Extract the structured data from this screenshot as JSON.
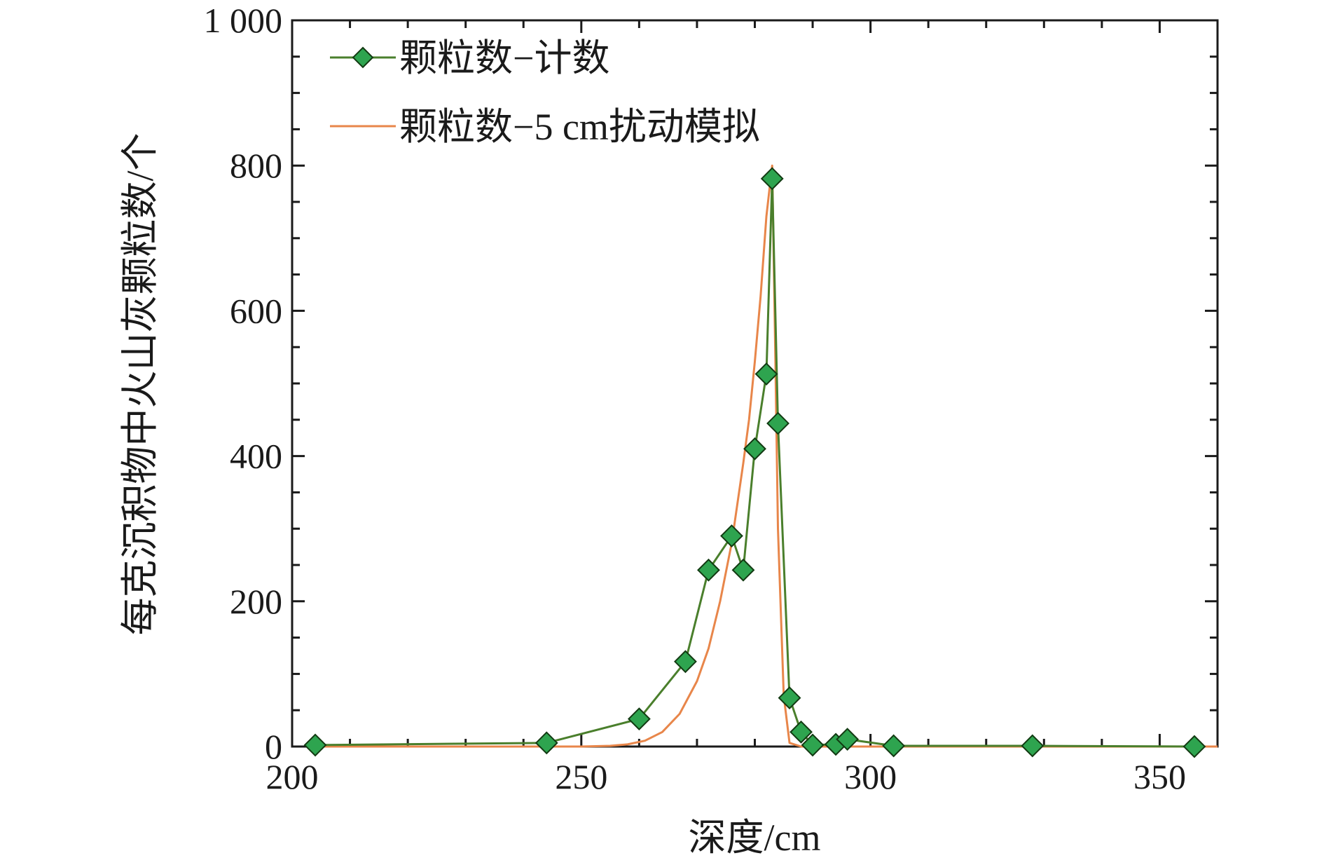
{
  "chart_data": {
    "type": "line",
    "xlabel": "深度/cm",
    "ylabel": "每克沉积物中火山灰颗粒数/个",
    "xlim": [
      200,
      360
    ],
    "ylim": [
      0,
      1000
    ],
    "x_ticks": [
      200,
      250,
      300,
      350
    ],
    "x_tick_labels": [
      "200",
      "250",
      "300",
      "350"
    ],
    "y_ticks": [
      0,
      200,
      400,
      600,
      800,
      1000
    ],
    "y_tick_labels": [
      "0",
      "200",
      "400",
      "600",
      "800",
      "1 000"
    ],
    "grid": false,
    "legend_position": "top-left",
    "series": [
      {
        "name": "颗粒数−计数",
        "color": "#4a7f2c",
        "marker_color": "#2ea44f",
        "marker": "diamond",
        "x": [
          204,
          244,
          260,
          268,
          272,
          276,
          278,
          280,
          282,
          283,
          284,
          286,
          288,
          290,
          294,
          296,
          304,
          328,
          356
        ],
        "y": [
          2,
          5,
          38,
          117,
          243,
          290,
          243,
          410,
          513,
          782,
          445,
          67,
          20,
          2,
          3,
          10,
          1,
          1,
          0
        ]
      },
      {
        "name": "颗粒数−5 cm扰动模拟",
        "color": "#e8864a",
        "x": [
          204,
          240,
          250,
          255,
          258,
          261,
          264,
          267,
          270,
          272,
          274,
          276,
          278,
          279,
          280,
          281,
          282,
          283,
          283.5,
          284,
          285,
          286,
          288,
          290,
          300,
          360
        ],
        "y": [
          0,
          0,
          0,
          1,
          3,
          8,
          20,
          45,
          90,
          135,
          200,
          280,
          390,
          450,
          530,
          620,
          730,
          800,
          560,
          300,
          70,
          5,
          0,
          0,
          0,
          0
        ]
      }
    ]
  }
}
